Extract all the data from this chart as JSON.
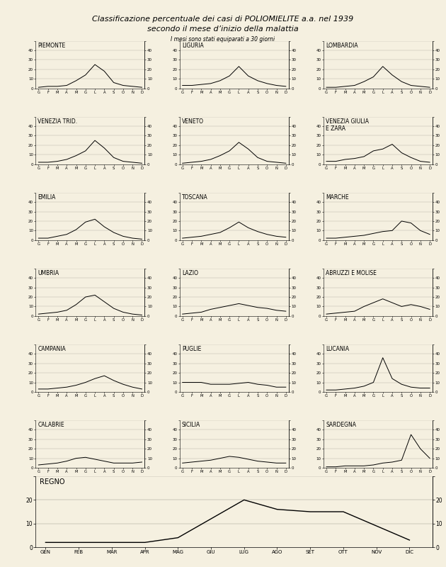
{
  "title_line1": "Classificazione percentuale dei casi di POLIOMIELITE a.a. nel 1939",
  "title_line2": "secondo il mese d’inizio della malattia",
  "subtitle": "I mesi sono stati equiparati a 30 giorni",
  "bg_color": "#f5f0e0",
  "months_short": [
    "G",
    "F",
    "M",
    "A",
    "M",
    "G",
    "L",
    "A",
    "S",
    "O",
    "N",
    "D"
  ],
  "months_long": [
    "GEN",
    "FEB",
    "MAR",
    "APR",
    "MAG",
    "GIU",
    "LUG",
    "AGO",
    "SET",
    "OTT",
    "NOV",
    "DIC"
  ],
  "regions": [
    {
      "name": "PIEMONTE",
      "data": [
        1,
        2,
        2,
        3,
        8,
        14,
        25,
        18,
        6,
        3,
        2,
        1
      ]
    },
    {
      "name": "LIGURIA",
      "data": [
        3,
        3,
        4,
        5,
        8,
        13,
        23,
        13,
        8,
        5,
        3,
        2
      ]
    },
    {
      "name": "LOMBARDIA",
      "data": [
        1,
        1,
        2,
        3,
        7,
        12,
        23,
        14,
        7,
        3,
        2,
        1
      ]
    },
    {
      "name": "VENEZIA TRID.",
      "data": [
        2,
        2,
        3,
        5,
        9,
        14,
        25,
        17,
        7,
        3,
        2,
        1
      ]
    },
    {
      "name": "VENETO",
      "data": [
        1,
        2,
        3,
        5,
        9,
        14,
        23,
        16,
        7,
        3,
        2,
        1
      ]
    },
    {
      "name": "VENEZIA GIULIA\nE ZARA",
      "data": [
        3,
        3,
        5,
        6,
        8,
        14,
        16,
        21,
        12,
        7,
        3,
        2
      ]
    },
    {
      "name": "EMILIA",
      "data": [
        2,
        2,
        4,
        6,
        11,
        19,
        22,
        14,
        8,
        4,
        2,
        1
      ]
    },
    {
      "name": "TOSCANA",
      "data": [
        2,
        3,
        4,
        6,
        8,
        13,
        19,
        13,
        9,
        6,
        4,
        3
      ]
    },
    {
      "name": "MARCHE",
      "data": [
        2,
        2,
        3,
        4,
        5,
        7,
        9,
        10,
        20,
        18,
        10,
        6
      ]
    },
    {
      "name": "UMBRIA",
      "data": [
        2,
        3,
        4,
        6,
        12,
        20,
        22,
        15,
        8,
        4,
        2,
        1
      ]
    },
    {
      "name": "LAZIO",
      "data": [
        2,
        3,
        4,
        7,
        9,
        11,
        13,
        11,
        9,
        8,
        6,
        5
      ]
    },
    {
      "name": "ABRUZZI E MOLISE",
      "data": [
        2,
        3,
        4,
        5,
        10,
        14,
        18,
        14,
        10,
        12,
        10,
        7
      ]
    },
    {
      "name": "CAMPANIA",
      "data": [
        3,
        3,
        4,
        5,
        7,
        10,
        14,
        17,
        12,
        8,
        5,
        3
      ]
    },
    {
      "name": "PUGLIE",
      "data": [
        10,
        10,
        10,
        8,
        8,
        8,
        9,
        10,
        8,
        7,
        5,
        5
      ]
    },
    {
      "name": "LUCANIA",
      "data": [
        2,
        2,
        3,
        4,
        6,
        10,
        36,
        14,
        8,
        5,
        4,
        4
      ]
    },
    {
      "name": "CALABRIE",
      "data": [
        3,
        4,
        5,
        7,
        10,
        11,
        9,
        7,
        5,
        5,
        5,
        6
      ]
    },
    {
      "name": "SICILIA",
      "data": [
        5,
        6,
        7,
        8,
        10,
        12,
        11,
        9,
        7,
        6,
        5,
        5
      ]
    },
    {
      "name": "SARDEGNA",
      "data": [
        1,
        1,
        2,
        2,
        2,
        3,
        5,
        6,
        8,
        35,
        20,
        10
      ]
    }
  ],
  "regno": {
    "name": "REGNO",
    "data": [
      2,
      2,
      2,
      2,
      4,
      12,
      20,
      16,
      15,
      15,
      9,
      3
    ]
  },
  "ylim_small": [
    0,
    50
  ],
  "yticks_small": [
    0,
    10,
    20,
    30,
    40,
    50
  ],
  "ylim_regno": [
    0,
    30
  ],
  "yticks_regno": [
    0,
    10,
    20,
    30
  ]
}
